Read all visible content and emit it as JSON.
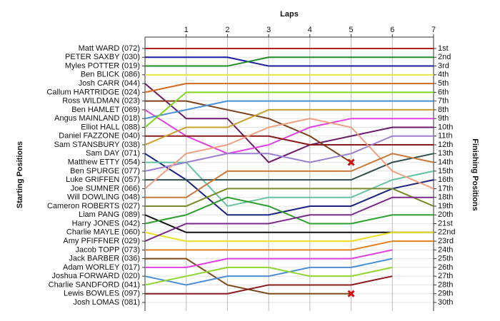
{
  "chart_data": {
    "type": "line",
    "x_label": "Laps",
    "y_label": "Starting Positions",
    "y2_label": "Finishing Positions",
    "x": [
      0,
      1,
      2,
      3,
      4,
      5,
      6,
      7
    ],
    "xlim": [
      0,
      7
    ],
    "xticks": [
      1,
      2,
      3,
      4,
      5,
      6,
      7
    ],
    "ylim": [
      1,
      30
    ],
    "y_inverted": true,
    "grid": true,
    "y2lim": [
      1,
      30
    ],
    "y2ticks": [
      {
        "value": 1,
        "label": "1st"
      },
      {
        "value": 2,
        "label": "2nd"
      },
      {
        "value": 3,
        "label": "3rd"
      },
      {
        "value": 4,
        "label": "4th"
      },
      {
        "value": 5,
        "label": "5th"
      },
      {
        "value": 6,
        "label": "6th"
      },
      {
        "value": 7,
        "label": "7th"
      },
      {
        "value": 8,
        "label": "8th"
      },
      {
        "value": 9,
        "label": "9th"
      },
      {
        "value": 10,
        "label": "10th"
      },
      {
        "value": 11,
        "label": "11th"
      },
      {
        "value": 12,
        "label": "12th"
      },
      {
        "value": 13,
        "label": "13th"
      },
      {
        "value": 14,
        "label": "14th"
      },
      {
        "value": 15,
        "label": "15th"
      },
      {
        "value": 16,
        "label": "16th"
      },
      {
        "value": 17,
        "label": "17th"
      },
      {
        "value": 18,
        "label": "18th"
      },
      {
        "value": 19,
        "label": "19th"
      },
      {
        "value": 20,
        "label": "20th"
      },
      {
        "value": 21,
        "label": "21st"
      },
      {
        "value": 22,
        "label": "22nd"
      },
      {
        "value": 23,
        "label": "23rd"
      },
      {
        "value": 24,
        "label": "24th"
      },
      {
        "value": 25,
        "label": "25th"
      },
      {
        "value": 26,
        "label": "26th"
      },
      {
        "value": 27,
        "label": "27th"
      },
      {
        "value": 28,
        "label": "28th"
      },
      {
        "value": 29,
        "label": "29th"
      },
      {
        "value": 30,
        "label": "30th"
      }
    ],
    "series": [
      {
        "name": "Matt WARD (072)",
        "color": "#b22222",
        "values": [
          1,
          1,
          1,
          1,
          1,
          1,
          1,
          1
        ]
      },
      {
        "name": "PETER SAXBY (030)",
        "color": "#1a1a9c",
        "values": [
          2,
          2,
          2,
          3,
          3,
          3,
          3,
          3
        ]
      },
      {
        "name": "Myles POTTER (019)",
        "color": "#228b22",
        "values": [
          3,
          3,
          3,
          2,
          2,
          2,
          2,
          2
        ]
      },
      {
        "name": "Ben BLICK (086)",
        "color": "#e6e64c",
        "values": [
          4,
          4,
          4,
          4,
          4,
          4,
          4,
          4
        ]
      },
      {
        "name": "Josh CARR (044)",
        "color": "#6a1b6a",
        "values": [
          5,
          9,
          9,
          14,
          12,
          11,
          10,
          10
        ]
      },
      {
        "name": "Callum HARTRIDGE (024)",
        "color": "#d2691e",
        "values": [
          6,
          5,
          5,
          5,
          5,
          5,
          5,
          5
        ]
      },
      {
        "name": "Ross WILDMAN (023)",
        "color": "#7b3f1a",
        "values": [
          7,
          7,
          8,
          9,
          11,
          14,
          null,
          null
        ],
        "retired": true
      },
      {
        "name": "Ben HAMLET (069)",
        "color": "#e040e0",
        "values": [
          8,
          11,
          13,
          12,
          10,
          9,
          9,
          9
        ]
      },
      {
        "name": "Angus MAINLAND (018)",
        "color": "#4a8fd4",
        "values": [
          9,
          8,
          7,
          7,
          7,
          7,
          7,
          7
        ]
      },
      {
        "name": "Elliot HALL (088)",
        "color": "#7fd621",
        "values": [
          10,
          6,
          6,
          6,
          6,
          6,
          6,
          6
        ]
      },
      {
        "name": "Daniel FAZZONE (040)",
        "color": "#8b1a1a",
        "values": [
          11,
          11,
          11,
          11,
          12,
          12,
          12,
          12
        ]
      },
      {
        "name": "Sam STANSBURY (038)",
        "color": "#c8a030",
        "values": [
          12,
          10,
          10,
          8,
          8,
          8,
          8,
          8
        ]
      },
      {
        "name": "Sam DAY (071)",
        "color": "#1a237e",
        "values": [
          13,
          16,
          20,
          20,
          19,
          19,
          17,
          16
        ]
      },
      {
        "name": "Matthew ETTY (054)",
        "color": "#66c2a5",
        "values": [
          14,
          14,
          19,
          18,
          18,
          18,
          16,
          15
        ]
      },
      {
        "name": "Ben SPURGE (077)",
        "color": "#9b7fcf",
        "values": [
          15,
          14,
          13,
          13,
          14,
          13,
          11,
          11
        ]
      },
      {
        "name": "Luke GRIFFEN (057)",
        "color": "#2f4f4f",
        "values": [
          16,
          16,
          16,
          16,
          16,
          16,
          14,
          13
        ]
      },
      {
        "name": "Joe SUMNER (066)",
        "color": "#f0a080",
        "values": [
          17,
          13,
          12,
          10,
          9,
          10,
          15,
          17
        ]
      },
      {
        "name": "Will DOWLING (048)",
        "color": "#c87a3a",
        "values": [
          18,
          18,
          15,
          15,
          15,
          15,
          13,
          14
        ]
      },
      {
        "name": "Cameron ROBERTS (027)",
        "color": "#7a8a2a",
        "values": [
          19,
          19,
          17,
          17,
          17,
          17,
          17,
          19
        ]
      },
      {
        "name": "Liam PANG (089)",
        "color": "#111111",
        "values": [
          20,
          22,
          22,
          22,
          22,
          22,
          22,
          22
        ]
      },
      {
        "name": "Harry JONES (042)",
        "color": "#2e9e2e",
        "values": [
          21,
          20,
          18,
          19,
          21,
          21,
          20,
          20
        ]
      },
      {
        "name": "Charlie MAYLE (060)",
        "color": "#e8e020",
        "values": [
          22,
          23,
          23,
          23,
          23,
          23,
          22,
          22
        ]
      },
      {
        "name": "Amy PFIFFNER (029)",
        "color": "#7a2a8a",
        "values": [
          23,
          21,
          21,
          21,
          20,
          20,
          18,
          18
        ]
      },
      {
        "name": "Jacob TOPP (073)",
        "color": "#e08020",
        "values": [
          24,
          24,
          24,
          24,
          24,
          24,
          23,
          23
        ]
      },
      {
        "name": "Jack BARBER (036)",
        "color": "#7b4a1a",
        "values": [
          25,
          25,
          28,
          29,
          29,
          29,
          null,
          null
        ],
        "retired": true
      },
      {
        "name": "Adam WORLEY (017)",
        "color": "#e040e0",
        "values": [
          26,
          26,
          25,
          25,
          25,
          25,
          24,
          null
        ]
      },
      {
        "name": "Joshua FORWARD (020)",
        "color": "#4a8fd4",
        "values": [
          27,
          28,
          27,
          27,
          26,
          26,
          25,
          null
        ]
      },
      {
        "name": "Charlie SANDFORD (041)",
        "color": "#8fd630",
        "values": [
          28,
          27,
          26,
          26,
          27,
          27,
          26,
          null
        ]
      },
      {
        "name": "Lewis BOWLES (097)",
        "color": "#8b1a1a",
        "values": [
          29,
          29,
          29,
          28,
          28,
          28,
          27,
          null
        ]
      },
      {
        "name": "Josh LOMAS (081)",
        "color": "#888888",
        "values": [
          30,
          null,
          null,
          null,
          null,
          null,
          null,
          null
        ]
      }
    ]
  }
}
